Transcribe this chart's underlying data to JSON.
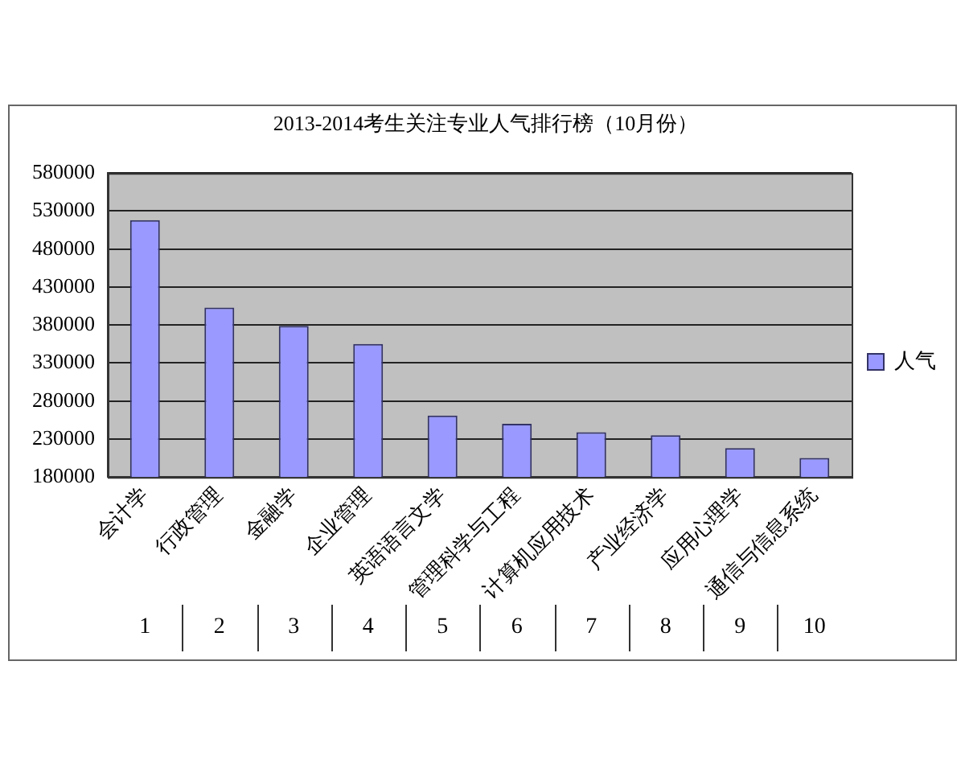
{
  "chart_data": {
    "type": "bar",
    "title": "2013-2014考生关注专业人气排行榜（10月份）",
    "categories": [
      "会计学",
      "行政管理",
      "金融学",
      "企业管理",
      "英语语言文学",
      "管理科学与工程",
      "计算机应用技术",
      "产业经济学",
      "应用心理学",
      "通信与信息系统"
    ],
    "series": [
      {
        "name": "人气",
        "color": "#9999ff",
        "values": [
          518000,
          403000,
          379000,
          355000,
          261000,
          250000,
          239000,
          235000,
          218000,
          205000
        ]
      }
    ],
    "ylim": [
      180000,
      580000
    ],
    "yticks": [
      180000,
      230000,
      280000,
      330000,
      380000,
      430000,
      480000,
      530000,
      580000
    ],
    "grid": "y",
    "legend": "right",
    "annotations": [
      "1",
      "2",
      "3",
      "4",
      "5",
      "6",
      "7",
      "8",
      "9",
      "10"
    ]
  }
}
